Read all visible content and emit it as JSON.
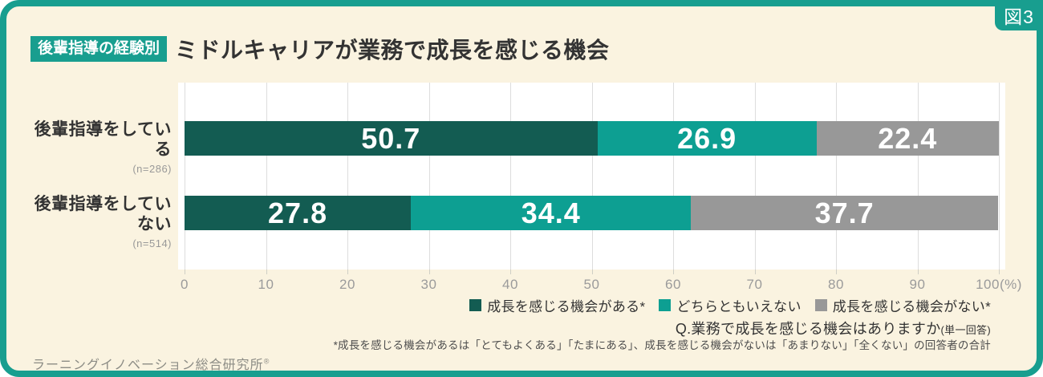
{
  "figure_label": "図3",
  "header": {
    "badge": "後輩指導の経験別",
    "title": "ミドルキャリアが業務で成長を感じる機会"
  },
  "colors": {
    "frame": "#189E8F",
    "background": "#FAF3E0",
    "plot_background": "#FFFFFF",
    "gridline": "#DDDDDD",
    "series": [
      "#135C52",
      "#0D9F92",
      "#989898"
    ],
    "value_text": "#FFFFFF",
    "axis_text": "#9B9B9B",
    "title_text": "#333333"
  },
  "chart_data": {
    "type": "bar",
    "orientation": "horizontal",
    "stacked": true,
    "title": "ミドルキャリアが業務で成長を感じる機会",
    "categories": [
      "後輩指導をしている",
      "後輩指導をしていない"
    ],
    "category_notes": [
      "(n=286)",
      "(n=514)"
    ],
    "series": [
      {
        "name": "成長を感じる機会がある*",
        "color": "#135C52",
        "values": [
          50.7,
          27.8
        ]
      },
      {
        "name": "どちらともいえない",
        "color": "#0D9F92",
        "values": [
          26.9,
          34.4
        ]
      },
      {
        "name": "成長を感じる機会がない*",
        "color": "#989898",
        "values": [
          22.4,
          37.7
        ]
      }
    ],
    "xlim": [
      0,
      100
    ],
    "x_tick_labels": [
      "0",
      "10",
      "20",
      "30",
      "40",
      "50",
      "60",
      "70",
      "80",
      "90",
      "100(%)"
    ],
    "grid": true,
    "legend_position": "bottom-right"
  },
  "footer": {
    "question": "Q.業務で成長を感じる機会はありますか",
    "question_suffix": "(単一回答)",
    "note": "*成長を感じる機会があるは「とてもよくある」「たまにある」、成長を感じる機会がないは「あまりない」「全くない」の回答者の合計",
    "logo": "ラーニングイノベーション総合研究所",
    "logo_mark": "®"
  }
}
